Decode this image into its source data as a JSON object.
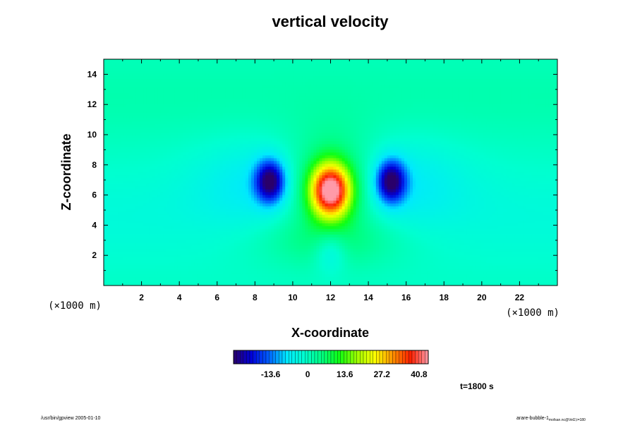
{
  "chart_data": {
    "type": "heatmap",
    "title": "vertical velocity",
    "xlabel": "X-coordinate",
    "ylabel": "Z-coordinate",
    "x_unit_label": "(×1000 m)",
    "y_unit_label": "(×1000 m)",
    "xlim": [
      0,
      24
    ],
    "ylim": [
      0,
      15
    ],
    "x_ticks": [
      "2",
      "4",
      "6",
      "8",
      "10",
      "12",
      "14",
      "16",
      "18",
      "20",
      "22"
    ],
    "x_tick_values": [
      2,
      4,
      6,
      8,
      10,
      12,
      14,
      16,
      18,
      20,
      22
    ],
    "y_ticks": [
      "2",
      "4",
      "6",
      "8",
      "10",
      "12",
      "14"
    ],
    "y_tick_values": [
      2,
      4,
      6,
      8,
      10,
      12,
      14
    ],
    "colorbar": {
      "range": [
        -27.2,
        44.2
      ],
      "tick_labels": [
        "-13.6",
        "0",
        "13.6",
        "27.2",
        "40.8"
      ],
      "tick_values": [
        -13.6,
        0,
        13.6,
        27.2,
        40.8
      ],
      "colors": [
        "#2a006a",
        "#0000d8",
        "#0060ff",
        "#00e8ff",
        "#00ffd0",
        "#00ff80",
        "#10ff10",
        "#a0ff00",
        "#ffff00",
        "#ff9000",
        "#ff2000",
        "#ff9aa8"
      ]
    },
    "features": [
      {
        "kind": "updraft_core",
        "x": 12,
        "z": 6.3,
        "peak": 44
      },
      {
        "kind": "downdraft",
        "x": 8.8,
        "z": 6.9,
        "min": -25
      },
      {
        "kind": "downdraft",
        "x": 15.2,
        "z": 6.9,
        "min": -25
      },
      {
        "kind": "weak_downdraft",
        "x": 12,
        "z": 2.3,
        "min": -5
      }
    ],
    "annotation": "t=1800 s"
  },
  "footer": {
    "left": "/usr/bin/gpview 2005-01-10",
    "right_main": "arare-bubble-1",
    "right_sub": "mofsan.nc@Vel2,t=180"
  }
}
